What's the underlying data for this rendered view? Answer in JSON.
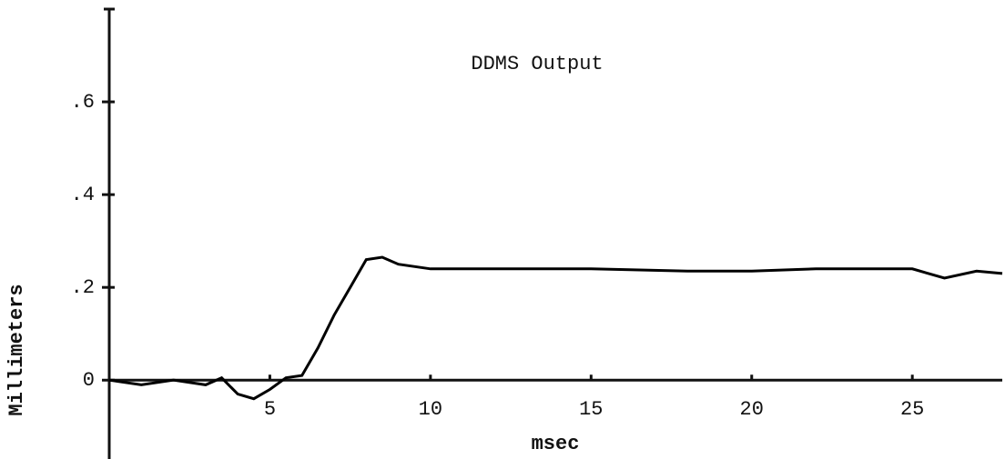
{
  "chart_data": {
    "type": "line",
    "title": "DDMS Output",
    "x_label": "msec",
    "y_label": "Millimeters",
    "x": [
      0,
      1,
      2,
      3,
      3.5,
      4,
      4.5,
      5,
      5.5,
      6,
      6.5,
      7,
      7.5,
      8,
      8.5,
      9,
      10,
      12,
      15,
      18,
      20,
      22,
      25,
      26,
      27,
      27.8
    ],
    "values": [
      0,
      -0.01,
      0,
      -0.01,
      0.005,
      -0.03,
      -0.04,
      -0.02,
      0.005,
      0.01,
      0.07,
      0.14,
      0.2,
      0.26,
      0.265,
      0.25,
      0.24,
      0.24,
      0.24,
      0.235,
      0.235,
      0.24,
      0.24,
      0.22,
      0.235,
      0.23
    ],
    "color": "#000000",
    "xlim": [
      0,
      27.8
    ],
    "xticks": [
      5,
      10,
      15,
      20,
      25
    ],
    "ylim": [
      -0.17,
      0.8
    ],
    "yticks": [
      0,
      {
        "value": 0.2,
        "label": ".2"
      },
      {
        "value": 0.4,
        "label": ".4"
      },
      {
        "value": 0.6,
        "label": ".6"
      }
    ],
    "grid": false
  }
}
